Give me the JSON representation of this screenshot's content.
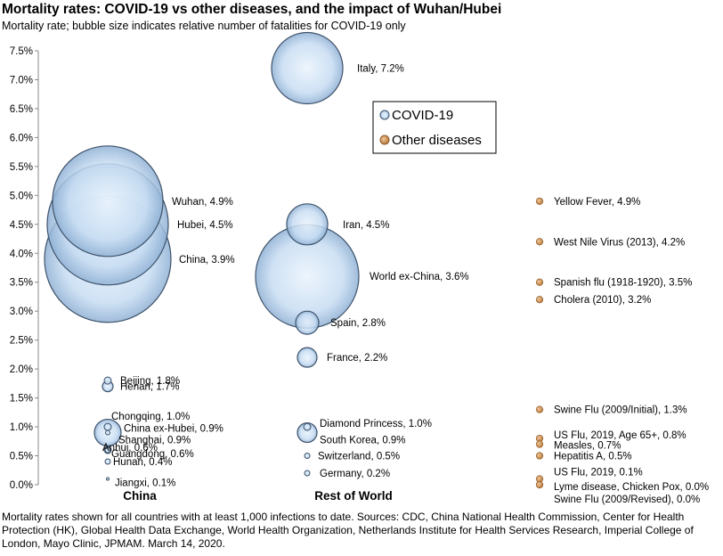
{
  "title": "Mortality rates: COVID-19 vs other diseases, and the impact of Wuhan/Hubei",
  "subtitle": "Mortality rate; bubble size indicates relative number of fatalities  for COVID-19 only",
  "footnote": "Mortality rates shown for all countries with at least 1,000 infections to date.  Sources: CDC, China National Health Commission, Center for Health Protection (HK), Global Health Data Exchange, World Health Organization, Netherlands Institute for Health Services Research,  Imperial College of London, Mayo Clinic, JPMAM. March 14, 2020.",
  "colors": {
    "covid": "#a9c8e8",
    "covid_edge": "#3e536b",
    "other": "#c8894a",
    "other_edge": "#8a5a2a"
  },
  "chart_data": {
    "type": "scatter",
    "bubble": true,
    "categories": [
      "China",
      "Rest of World"
    ],
    "ylim": [
      0,
      7.5
    ],
    "yticks": [
      "0.0%",
      "0.5%",
      "1.0%",
      "1.5%",
      "2.0%",
      "2.5%",
      "3.0%",
      "3.5%",
      "4.0%",
      "4.5%",
      "5.0%",
      "5.5%",
      "6.0%",
      "6.5%",
      "7.0%",
      "7.5%"
    ],
    "grid": false,
    "legend": {
      "position": "top-right",
      "entries": [
        "COVID-19",
        "Other diseases"
      ]
    },
    "series": [
      {
        "name": "COVID-19",
        "points": [
          {
            "group": "China",
            "label": "Wuhan, 4.9%",
            "y": 4.9,
            "size": 62
          },
          {
            "group": "China",
            "label": "Hubei, 4.5%",
            "y": 4.5,
            "size": 68
          },
          {
            "group": "China",
            "label": "China, 3.9%",
            "y": 3.9,
            "size": 71
          },
          {
            "group": "China",
            "label": "Beijing, 1.8%",
            "y": 1.8,
            "size": 4
          },
          {
            "group": "China",
            "label": "Henan, 1.7%",
            "y": 1.7,
            "size": 6
          },
          {
            "group": "China",
            "label": "Chongqing, 1.0%",
            "y": 1.0,
            "size": 4
          },
          {
            "group": "China",
            "label": "China ex-Hubei, 0.9%",
            "y": 0.9,
            "size": 15
          },
          {
            "group": "China",
            "label": "Shanghai, 0.9%",
            "y": 0.9,
            "size": 2.5
          },
          {
            "group": "China",
            "label": "Anhui, 0.6%",
            "y": 0.6,
            "size": 3
          },
          {
            "group": "China",
            "label": "Guangdong, 0.6%",
            "y": 0.6,
            "size": 4
          },
          {
            "group": "China",
            "label": "Hunan, 0.4%",
            "y": 0.4,
            "size": 3
          },
          {
            "group": "China",
            "label": "Jiangxi, 0.1%",
            "y": 0.1,
            "size": 1.5
          },
          {
            "group": "Rest of World",
            "label": "Italy, 7.2%",
            "y": 7.2,
            "size": 40
          },
          {
            "group": "Rest of World",
            "label": "Iran, 4.5%",
            "y": 4.5,
            "size": 23
          },
          {
            "group": "Rest of World",
            "label": "World ex-China, 3.6%",
            "y": 3.6,
            "size": 58
          },
          {
            "group": "Rest of World",
            "label": "Spain, 2.8%",
            "y": 2.8,
            "size": 13
          },
          {
            "group": "Rest of World",
            "label": "France, 2.2%",
            "y": 2.2,
            "size": 11
          },
          {
            "group": "Rest of World",
            "label": "Diamond Princess, 1.0%",
            "y": 1.0,
            "size": 4
          },
          {
            "group": "Rest of World",
            "label": "South Korea, 0.9%",
            "y": 0.9,
            "size": 11
          },
          {
            "group": "Rest of World",
            "label": "Switzerland, 0.5%",
            "y": 0.5,
            "size": 3
          },
          {
            "group": "Rest of World",
            "label": "Germany, 0.2%",
            "y": 0.2,
            "size": 3
          }
        ]
      },
      {
        "name": "Other diseases",
        "points": [
          {
            "label": "Yellow Fever, 4.9%",
            "y": 4.9
          },
          {
            "label": "West Nile Virus (2013), 4.2%",
            "y": 4.2
          },
          {
            "label": "Spanish flu (1918-1920), 3.5%",
            "y": 3.5
          },
          {
            "label": "Cholera (2010), 3.2%",
            "y": 3.2
          },
          {
            "label": "Swine Flu (2009/Initial), 1.3%",
            "y": 1.3
          },
          {
            "label": "US Flu, 2019, Age 65+, 0.8%",
            "y": 0.8
          },
          {
            "label": "Measles, 0.7%",
            "y": 0.7
          },
          {
            "label": "Hepatitis A, 0.5%",
            "y": 0.5
          },
          {
            "label": "US Flu, 2019, 0.1%",
            "y": 0.1
          },
          {
            "label": "Lyme disease, Chicken Pox, 0.0%",
            "y": 0.0
          },
          {
            "label": "Swine Flu (2009/Revised), 0.0%",
            "y": 0.0
          }
        ]
      }
    ]
  }
}
